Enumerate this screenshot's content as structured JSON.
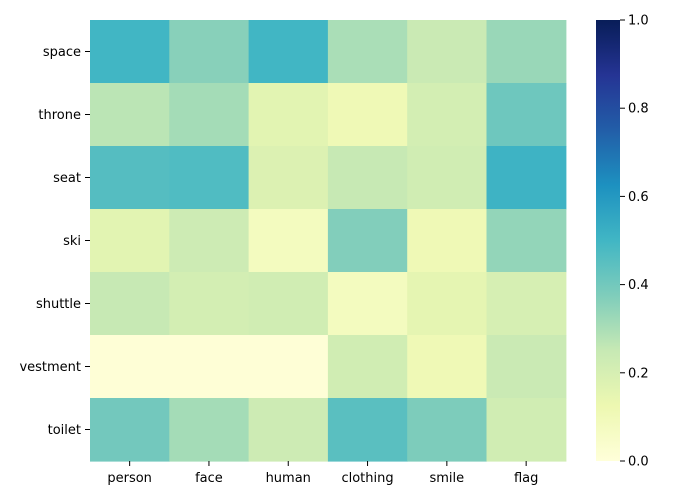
{
  "chart_data": {
    "type": "heatmap",
    "title": "",
    "xlabel": "",
    "ylabel": "",
    "x_categories": [
      "person",
      "face",
      "human",
      "clothing",
      "smile",
      "flag"
    ],
    "y_categories": [
      "space",
      "throne",
      "seat",
      "ski",
      "shuttle",
      "vestment",
      "toilet"
    ],
    "values": [
      [
        0.5,
        0.36,
        0.5,
        0.3,
        0.24,
        0.33
      ],
      [
        0.27,
        0.31,
        0.16,
        0.11,
        0.21,
        0.41
      ],
      [
        0.46,
        0.47,
        0.18,
        0.25,
        0.22,
        0.51
      ],
      [
        0.16,
        0.23,
        0.08,
        0.37,
        0.11,
        0.34
      ],
      [
        0.25,
        0.21,
        0.22,
        0.08,
        0.15,
        0.2
      ],
      [
        0.01,
        0.01,
        0.01,
        0.22,
        0.11,
        0.24
      ],
      [
        0.4,
        0.31,
        0.23,
        0.45,
        0.38,
        0.22
      ]
    ],
    "colormap": "YlGnBu",
    "vmin": 0.0,
    "vmax": 1.0,
    "colorbar_ticks": [
      "0.0",
      "0.2",
      "0.4",
      "0.6",
      "0.8",
      "1.0"
    ],
    "colorbar_tick_values": [
      0.0,
      0.2,
      0.4,
      0.6,
      0.8,
      1.0
    ],
    "grid": false
  }
}
